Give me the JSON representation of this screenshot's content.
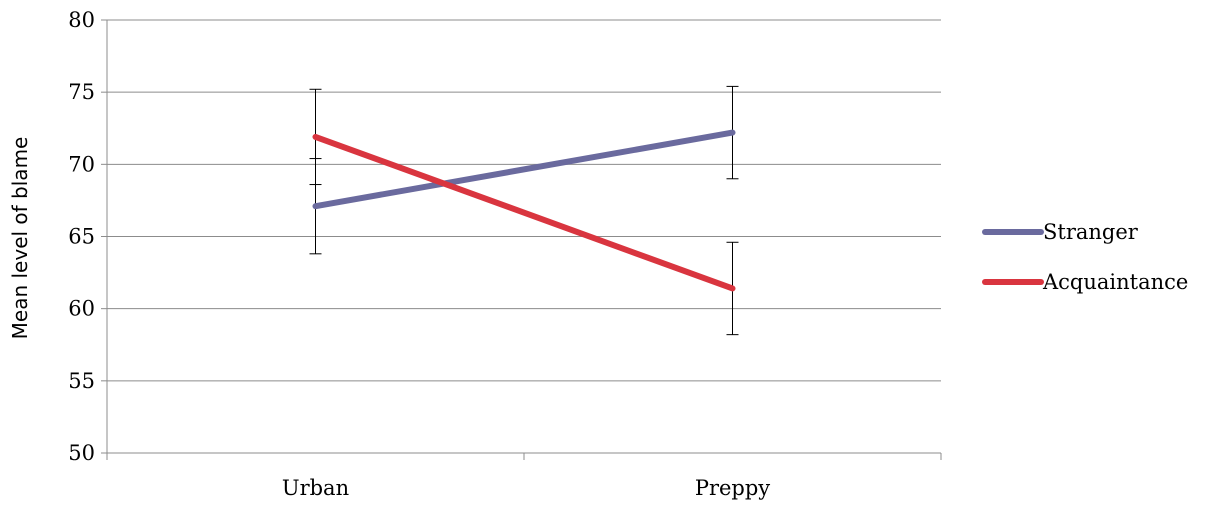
{
  "chart_data": {
    "type": "line",
    "title": "",
    "xlabel": "",
    "ylabel": "Mean level of blame",
    "categories": [
      "Urban",
      "Preppy"
    ],
    "ylim": [
      50,
      80
    ],
    "yticks": [
      50,
      55,
      60,
      65,
      70,
      75,
      80
    ],
    "ytick_labels": [
      "50",
      "55",
      "60",
      "65",
      "70",
      "75",
      "80"
    ],
    "grid": true,
    "legend_position": "right",
    "series": [
      {
        "name": "Stranger",
        "color": "#6a6a9e",
        "values": [
          67.1,
          72.2
        ],
        "error_low": [
          63.8,
          69.0
        ],
        "error_high": [
          70.4,
          75.4
        ]
      },
      {
        "name": "Acquaintance",
        "color": "#d9353f",
        "values": [
          71.9,
          61.4
        ],
        "error_low": [
          68.6,
          58.2
        ],
        "error_high": [
          75.2,
          64.6
        ]
      }
    ]
  }
}
